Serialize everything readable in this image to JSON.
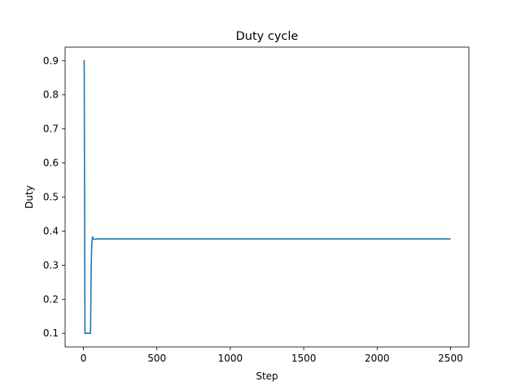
{
  "chart_data": {
    "type": "line",
    "title": "Duty cycle",
    "xlabel": "Step",
    "ylabel": "Duty",
    "xlim": [
      -125,
      2625
    ],
    "ylim": [
      0.06,
      0.94
    ],
    "xticks": [
      0,
      500,
      1000,
      1500,
      2000,
      2500
    ],
    "yticks": [
      0.1,
      0.2,
      0.3,
      0.4,
      0.5,
      0.6,
      0.7,
      0.8,
      0.9
    ],
    "grid": false,
    "legend": "none",
    "series": [
      {
        "color": "#1f77b4",
        "points": [
          [
            0,
            0.9
          ],
          [
            5,
            0.9
          ],
          [
            10,
            0.1
          ],
          [
            20,
            0.1
          ],
          [
            30,
            0.1
          ],
          [
            40,
            0.1
          ],
          [
            48,
            0.1
          ],
          [
            50,
            0.18
          ],
          [
            52,
            0.28
          ],
          [
            55,
            0.34
          ],
          [
            58,
            0.37
          ],
          [
            62,
            0.383
          ],
          [
            66,
            0.378
          ],
          [
            70,
            0.376
          ],
          [
            100,
            0.377
          ],
          [
            200,
            0.377
          ],
          [
            500,
            0.377
          ],
          [
            1000,
            0.377
          ],
          [
            1500,
            0.377
          ],
          [
            2000,
            0.377
          ],
          [
            2500,
            0.377
          ]
        ]
      }
    ]
  }
}
